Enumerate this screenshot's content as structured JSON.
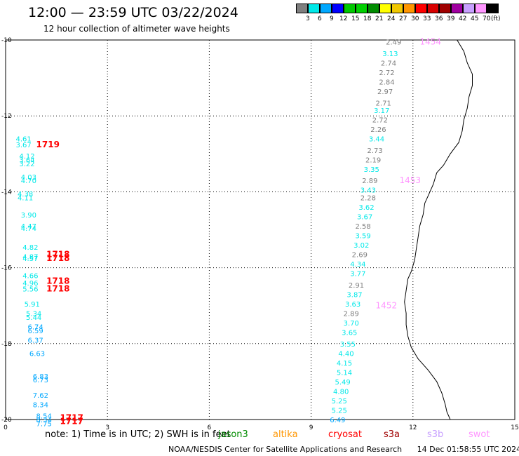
{
  "title": "12:00 — 23:59 UTC 03/22/2024",
  "subtitle": "12 hour collection of altimeter wave heights",
  "colorbar": {
    "unit": "(ft)",
    "colors": [
      "#7f7f7f",
      "#00e8e8",
      "#00a8ff",
      "#0000ff",
      "#00c800",
      "#00d000",
      "#008c00",
      "#ffff00",
      "#f0c800",
      "#ff9600",
      "#ff0000",
      "#d80000",
      "#a00000",
      "#a000a0",
      "#c8a0ff",
      "#ff96ff",
      "#000000"
    ],
    "labels": [
      "3",
      "6",
      "9",
      "12",
      "15",
      "18",
      "21",
      "24",
      "27",
      "30",
      "33",
      "36",
      "39",
      "42",
      "45",
      "70"
    ]
  },
  "map": {
    "x_ticks": [
      "0",
      "3",
      "6",
      "9",
      "12",
      "15"
    ],
    "y_ticks": [
      "-10",
      "-12",
      "-14",
      "-16",
      "-18",
      "-20"
    ],
    "left_track": [
      {
        "lon": 0.3,
        "lat": -12.6,
        "value": "4.61",
        "color": "#00e8e8"
      },
      {
        "lon": 0.3,
        "lat": -12.75,
        "value": "3.67",
        "color": "#00e8e8"
      },
      {
        "lon": 0.4,
        "lat": -13.05,
        "value": "4.12",
        "color": "#00e8e8"
      },
      {
        "lon": 0.4,
        "lat": -13.15,
        "value": "3.64",
        "color": "#00e8e8"
      },
      {
        "lon": 0.4,
        "lat": -13.25,
        "value": "3.22",
        "color": "#00e8e8"
      },
      {
        "lon": 0.45,
        "lat": -13.6,
        "value": "4.03",
        "color": "#00e8e8"
      },
      {
        "lon": 0.45,
        "lat": -13.7,
        "value": "4.70",
        "color": "#00e8e8"
      },
      {
        "lon": 0.35,
        "lat": -14.05,
        "value": "4.38",
        "color": "#00e8e8"
      },
      {
        "lon": 0.35,
        "lat": -14.15,
        "value": "4.11",
        "color": "#00e8e8"
      },
      {
        "lon": 0.45,
        "lat": -14.6,
        "value": "3.90",
        "color": "#00e8e8"
      },
      {
        "lon": 0.45,
        "lat": -14.9,
        "value": "4.47",
        "color": "#00e8e8"
      },
      {
        "lon": 0.45,
        "lat": -14.95,
        "value": "4.74",
        "color": "#00e8e8"
      },
      {
        "lon": 0.5,
        "lat": -15.45,
        "value": "4.82",
        "color": "#00e8e8"
      },
      {
        "lon": 0.5,
        "lat": -15.7,
        "value": "4.87",
        "color": "#00e8e8"
      },
      {
        "lon": 0.5,
        "lat": -15.75,
        "value": "4.57",
        "color": "#00e8e8"
      },
      {
        "lon": 0.5,
        "lat": -16.2,
        "value": "4.66",
        "color": "#00e8e8"
      },
      {
        "lon": 0.5,
        "lat": -16.4,
        "value": "4.96",
        "color": "#00e8e8"
      },
      {
        "lon": 0.5,
        "lat": -16.55,
        "value": "5.56",
        "color": "#00e8e8"
      },
      {
        "lon": 0.55,
        "lat": -16.95,
        "value": "5.91",
        "color": "#00e8e8"
      },
      {
        "lon": 0.6,
        "lat": -17.2,
        "value": "5.34",
        "color": "#00e8e8"
      },
      {
        "lon": 0.6,
        "lat": -17.3,
        "value": "5.44",
        "color": "#00e8e8"
      },
      {
        "lon": 0.65,
        "lat": -17.55,
        "value": "6.74",
        "color": "#00a8ff"
      },
      {
        "lon": 0.65,
        "lat": -17.65,
        "value": "6.59",
        "color": "#00a8ff"
      },
      {
        "lon": 0.65,
        "lat": -17.9,
        "value": "6.37",
        "color": "#00a8ff"
      },
      {
        "lon": 0.7,
        "lat": -18.25,
        "value": "6.63",
        "color": "#00a8ff"
      },
      {
        "lon": 0.8,
        "lat": -18.85,
        "value": "6.83",
        "color": "#00a8ff"
      },
      {
        "lon": 0.8,
        "lat": -18.95,
        "value": "6.73",
        "color": "#00a8ff"
      },
      {
        "lon": 0.8,
        "lat": -19.35,
        "value": "7.62",
        "color": "#00a8ff"
      },
      {
        "lon": 0.8,
        "lat": -19.6,
        "value": "8.34",
        "color": "#00a8ff"
      },
      {
        "lon": 0.9,
        "lat": -19.9,
        "value": "8.54",
        "color": "#00a8ff"
      },
      {
        "lon": 0.9,
        "lat": -20.0,
        "value": "8.34",
        "color": "#00a8ff"
      },
      {
        "lon": 0.9,
        "lat": -20.1,
        "value": "7.75",
        "color": "#00a8ff"
      }
    ],
    "left_times": [
      {
        "lon": 0.9,
        "lat": -12.75,
        "value": "1719",
        "color": "#ff0000"
      },
      {
        "lon": 1.2,
        "lat": -15.65,
        "value": "1718",
        "color": "#ff0000"
      },
      {
        "lon": 1.2,
        "lat": -15.75,
        "value": "1718",
        "color": "#ff0000"
      },
      {
        "lon": 1.2,
        "lat": -16.35,
        "value": "1718",
        "color": "#ff0000"
      },
      {
        "lon": 1.2,
        "lat": -16.55,
        "value": "1718",
        "color": "#ff0000"
      },
      {
        "lon": 1.6,
        "lat": -19.95,
        "value": "1717",
        "color": "#ff0000"
      },
      {
        "lon": 1.6,
        "lat": -20.05,
        "value": "1717",
        "color": "#ff0000"
      }
    ],
    "right_track": [
      {
        "lon": 11.2,
        "lat": -10.05,
        "value": "2.49",
        "color": "#7f7f7f"
      },
      {
        "lon": 11.1,
        "lat": -10.35,
        "value": "3.13",
        "color": "#00e8e8"
      },
      {
        "lon": 11.05,
        "lat": -10.6,
        "value": "2.74",
        "color": "#7f7f7f"
      },
      {
        "lon": 11.0,
        "lat": -10.85,
        "value": "2.72",
        "color": "#7f7f7f"
      },
      {
        "lon": 11.0,
        "lat": -11.1,
        "value": "2.84",
        "color": "#7f7f7f"
      },
      {
        "lon": 10.95,
        "lat": -11.35,
        "value": "2.97",
        "color": "#7f7f7f"
      },
      {
        "lon": 10.9,
        "lat": -11.65,
        "value": "2.71",
        "color": "#7f7f7f"
      },
      {
        "lon": 10.85,
        "lat": -11.85,
        "value": "3.17",
        "color": "#00e8e8"
      },
      {
        "lon": 10.8,
        "lat": -12.1,
        "value": "2.72",
        "color": "#7f7f7f"
      },
      {
        "lon": 10.75,
        "lat": -12.35,
        "value": "2.26",
        "color": "#7f7f7f"
      },
      {
        "lon": 10.7,
        "lat": -12.6,
        "value": "3.44",
        "color": "#00e8e8"
      },
      {
        "lon": 10.65,
        "lat": -12.9,
        "value": "2.73",
        "color": "#7f7f7f"
      },
      {
        "lon": 10.6,
        "lat": -13.15,
        "value": "2.19",
        "color": "#7f7f7f"
      },
      {
        "lon": 10.55,
        "lat": -13.4,
        "value": "3.35",
        "color": "#00e8e8"
      },
      {
        "lon": 10.5,
        "lat": -13.7,
        "value": "2.89",
        "color": "#7f7f7f"
      },
      {
        "lon": 10.45,
        "lat": -13.95,
        "value": "3.43",
        "color": "#00e8e8"
      },
      {
        "lon": 10.45,
        "lat": -14.15,
        "value": "2.28",
        "color": "#7f7f7f"
      },
      {
        "lon": 10.4,
        "lat": -14.4,
        "value": "3.62",
        "color": "#00e8e8"
      },
      {
        "lon": 10.35,
        "lat": -14.65,
        "value": "3.67",
        "color": "#00e8e8"
      },
      {
        "lon": 10.3,
        "lat": -14.9,
        "value": "2.58",
        "color": "#7f7f7f"
      },
      {
        "lon": 10.3,
        "lat": -15.15,
        "value": "3.59",
        "color": "#00e8e8"
      },
      {
        "lon": 10.25,
        "lat": -15.4,
        "value": "3.02",
        "color": "#00e8e8"
      },
      {
        "lon": 10.2,
        "lat": -15.65,
        "value": "2.69",
        "color": "#7f7f7f"
      },
      {
        "lon": 10.15,
        "lat": -15.9,
        "value": "4.34",
        "color": "#00e8e8"
      },
      {
        "lon": 10.15,
        "lat": -16.15,
        "value": "3.77",
        "color": "#00e8e8"
      },
      {
        "lon": 10.1,
        "lat": -16.45,
        "value": "2.91",
        "color": "#7f7f7f"
      },
      {
        "lon": 10.05,
        "lat": -16.7,
        "value": "3.87",
        "color": "#00e8e8"
      },
      {
        "lon": 10.0,
        "lat": -16.95,
        "value": "3.63",
        "color": "#00e8e8"
      },
      {
        "lon": 9.95,
        "lat": -17.2,
        "value": "2.89",
        "color": "#7f7f7f"
      },
      {
        "lon": 9.95,
        "lat": -17.45,
        "value": "3.70",
        "color": "#00e8e8"
      },
      {
        "lon": 9.9,
        "lat": -17.7,
        "value": "3.65",
        "color": "#00e8e8"
      },
      {
        "lon": 9.85,
        "lat": -18.0,
        "value": "3.55",
        "color": "#00e8e8"
      },
      {
        "lon": 9.8,
        "lat": -18.25,
        "value": "4.40",
        "color": "#00e8e8"
      },
      {
        "lon": 9.75,
        "lat": -18.5,
        "value": "4.15",
        "color": "#00e8e8"
      },
      {
        "lon": 9.75,
        "lat": -18.75,
        "value": "5.14",
        "color": "#00e8e8"
      },
      {
        "lon": 9.7,
        "lat": -19.0,
        "value": "5.49",
        "color": "#00e8e8"
      },
      {
        "lon": 9.65,
        "lat": -19.25,
        "value": "4.80",
        "color": "#00e8e8"
      },
      {
        "lon": 9.6,
        "lat": -19.5,
        "value": "5.25",
        "color": "#00e8e8"
      },
      {
        "lon": 9.6,
        "lat": -19.75,
        "value": "5.25",
        "color": "#00e8e8"
      },
      {
        "lon": 9.55,
        "lat": -20.0,
        "value": "6.49",
        "color": "#00a8ff"
      }
    ],
    "right_times": [
      {
        "lon": 12.2,
        "lat": -10.05,
        "value": "1454",
        "color": "#ff96ff"
      },
      {
        "lon": 11.6,
        "lat": -13.7,
        "value": "1453",
        "color": "#ff96ff"
      },
      {
        "lon": 10.9,
        "lat": -17.0,
        "value": "1452",
        "color": "#ff96ff"
      }
    ],
    "coastline": [
      [
        13.3,
        -10.0
      ],
      [
        13.5,
        -10.3
      ],
      [
        13.6,
        -10.6
      ],
      [
        13.75,
        -10.9
      ],
      [
        13.75,
        -11.2
      ],
      [
        13.65,
        -11.5
      ],
      [
        13.6,
        -11.8
      ],
      [
        13.5,
        -12.1
      ],
      [
        13.45,
        -12.4
      ],
      [
        13.35,
        -12.7
      ],
      [
        13.1,
        -13.0
      ],
      [
        12.9,
        -13.3
      ],
      [
        12.7,
        -13.5
      ],
      [
        12.6,
        -13.8
      ],
      [
        12.45,
        -14.1
      ],
      [
        12.35,
        -14.3
      ],
      [
        12.3,
        -14.6
      ],
      [
        12.2,
        -14.9
      ],
      [
        12.15,
        -15.2
      ],
      [
        12.1,
        -15.5
      ],
      [
        12.05,
        -15.8
      ],
      [
        11.95,
        -16.1
      ],
      [
        11.85,
        -16.3
      ],
      [
        11.8,
        -16.6
      ],
      [
        11.75,
        -16.9
      ],
      [
        11.8,
        -17.2
      ],
      [
        11.8,
        -17.5
      ],
      [
        11.85,
        -17.8
      ],
      [
        11.95,
        -18.1
      ],
      [
        12.15,
        -18.4
      ],
      [
        12.45,
        -18.7
      ],
      [
        12.7,
        -19.0
      ],
      [
        12.85,
        -19.3
      ],
      [
        12.95,
        -19.6
      ],
      [
        13.0,
        -19.8
      ],
      [
        13.1,
        -20.0
      ]
    ]
  },
  "note": {
    "text": "note:  1) Time is in UTC;  2) SWH is in feet",
    "items": [
      {
        "label": "jason3",
        "color": "#008c00"
      },
      {
        "label": "altika",
        "color": "#ff9600"
      },
      {
        "label": "cryosat",
        "color": "#ff0000"
      },
      {
        "label": "s3a",
        "color": "#a00000"
      },
      {
        "label": "s3b",
        "color": "#c8a0ff"
      },
      {
        "label": "swot",
        "color": "#ff96ff"
      }
    ]
  },
  "footer": {
    "org": "NOAA/NESDIS Center for Satellite Applications and Research",
    "timestamp": "14 Dec 01:58:55 UTC 2024"
  }
}
